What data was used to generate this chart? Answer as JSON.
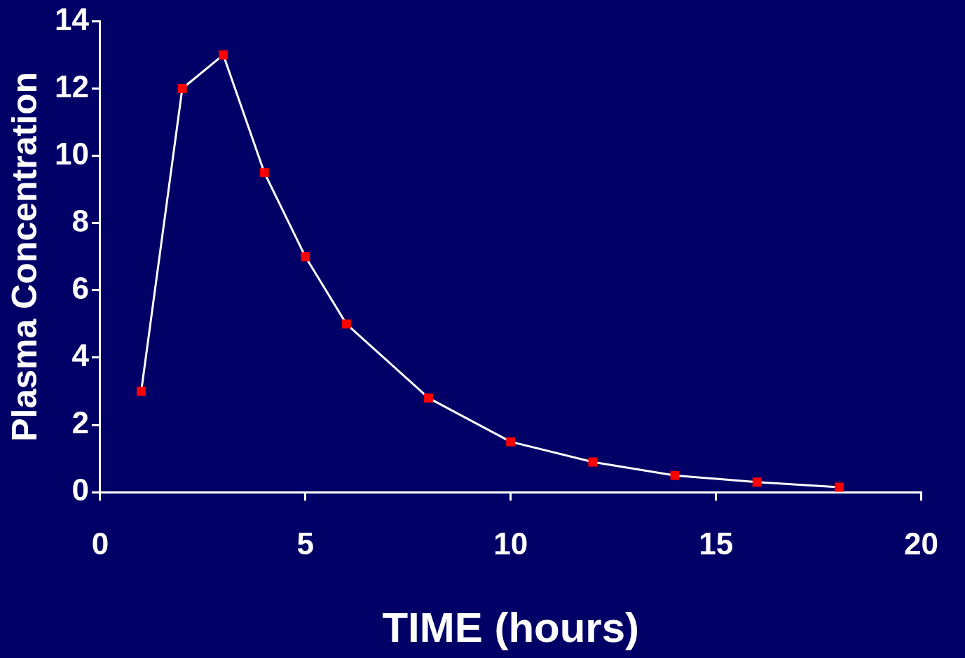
{
  "chart_data": {
    "type": "line",
    "xlabel": "TIME (hours)",
    "ylabel": "Plasma Concentration",
    "x": [
      1,
      2,
      3,
      4,
      5,
      6,
      8,
      10,
      12,
      14,
      16,
      18
    ],
    "series": [
      {
        "color": "#ffffff",
        "values": [
          3,
          12,
          13,
          9.5,
          7,
          5,
          2.8,
          1.5,
          0.9,
          0.5,
          0.3,
          0.15
        ]
      }
    ],
    "marker": "square",
    "line_style": "solid",
    "xlim": [
      0,
      20
    ],
    "xticks": [
      0,
      5,
      10,
      15,
      20
    ],
    "ylim": [
      0,
      14
    ],
    "yticks": [
      0,
      2,
      4,
      6,
      8,
      10,
      12,
      14
    ],
    "grid": false,
    "legend": false
  }
}
